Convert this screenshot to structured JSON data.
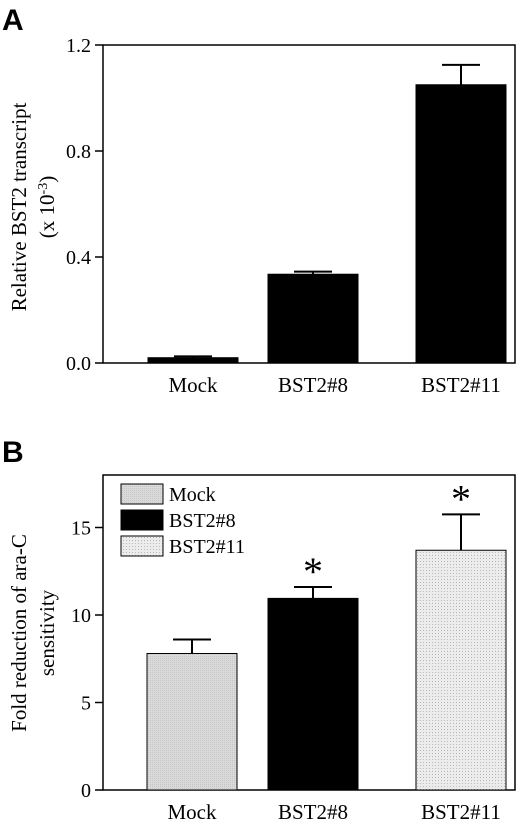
{
  "chart_data": [
    {
      "panel": "A",
      "type": "bar",
      "categories": [
        "Mock",
        "BST2#8",
        "BST2#11"
      ],
      "values": [
        0.02,
        0.335,
        1.05
      ],
      "errors": [
        0.005,
        0.01,
        0.075
      ],
      "ylabel_line1": "Relative BST2 transcript",
      "ylabel_line2_prefix": "(x 10",
      "ylabel_line2_exp": "-3",
      "ylabel_line2_suffix": ")",
      "ylim": [
        0,
        1.2
      ],
      "yticks": [
        "0.0",
        "0.4",
        "0.8",
        "1.2"
      ],
      "grid": false,
      "legend": "none",
      "colors": [
        "#000000",
        "#000000",
        "#000000"
      ]
    },
    {
      "panel": "B",
      "type": "bar",
      "categories": [
        "Mock",
        "BST2#8",
        "BST2#11"
      ],
      "values": [
        7.8,
        10.95,
        13.7
      ],
      "errors": [
        0.8,
        0.65,
        2.05
      ],
      "significance": [
        "",
        "*",
        "*"
      ],
      "ylabel_line1": "Fold reduction of ara-C",
      "ylabel_line2": "sensitivity",
      "ylim": [
        0,
        18
      ],
      "yticks": [
        "0",
        "5",
        "10",
        "15"
      ],
      "grid": false,
      "legend": "top-left",
      "legend_entries": [
        "Mock",
        "BST2#8",
        "BST2#11"
      ],
      "colors": [
        "#d4d4d4",
        "#000000",
        "#e6e6e6"
      ]
    }
  ]
}
